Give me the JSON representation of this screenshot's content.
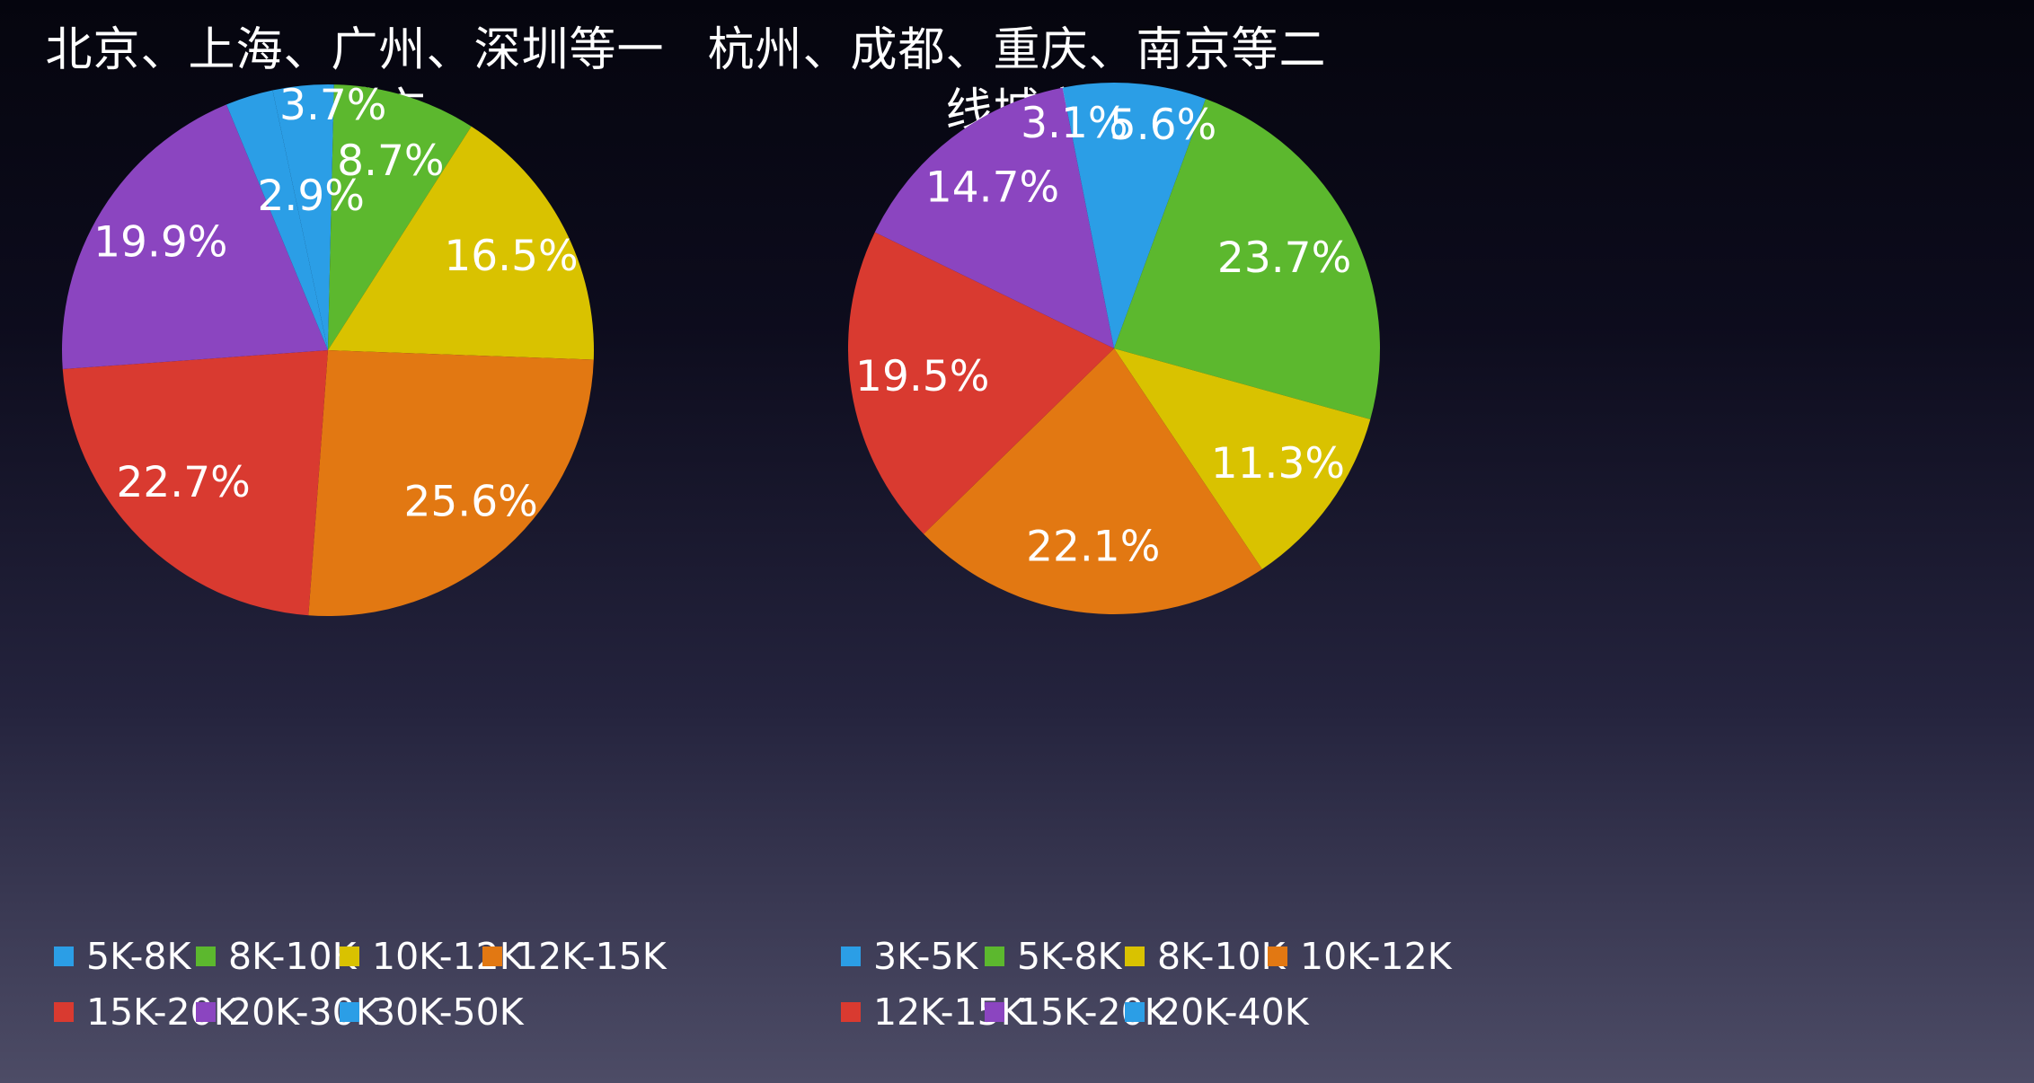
{
  "chart_data": [
    {
      "type": "pie",
      "title": "北京、上海、广州、深圳等一线城市",
      "title_lines": [
        "北京、上海、广州、深圳等一",
        "线城市"
      ],
      "categories": [
        "5K-8K",
        "8K-10K",
        "10K-12K",
        "12K-15K",
        "15K-20K",
        "20K-30K",
        "30K-50K"
      ],
      "values": [
        3.7,
        8.7,
        16.5,
        25.6,
        22.7,
        19.9,
        2.9
      ],
      "labels": [
        "3.7%",
        "8.7%",
        "16.5%",
        "25.6%",
        "22.7%",
        "19.9%",
        "2.9%"
      ],
      "colors": [
        "#2b9ee6",
        "#5cb82e",
        "#d9c200",
        "#e27812",
        "#d93a30",
        "#8b45c0",
        "#2b9ee6"
      ],
      "legend": "bottom"
    },
    {
      "type": "pie",
      "title": "杭州、成都、重庆、南京等二线城市",
      "title_lines": [
        "杭州、成都、重庆、南京等二",
        "线城市"
      ],
      "categories": [
        "3K-5K",
        "5K-8K",
        "8K-10K",
        "10K-12K",
        "12K-15K",
        "15K-20K",
        "20K-40K"
      ],
      "values": [
        5.6,
        23.7,
        11.3,
        22.1,
        19.5,
        14.7,
        3.1
      ],
      "labels": [
        "5.6%",
        "23.7%",
        "11.3%",
        "22.1%",
        "19.5%",
        "14.7%",
        "3.1%"
      ],
      "colors": [
        "#2b9ee6",
        "#5cb82e",
        "#d9c200",
        "#e27812",
        "#d93a30",
        "#8b45c0",
        "#2b9ee6"
      ],
      "legend": "bottom"
    }
  ]
}
